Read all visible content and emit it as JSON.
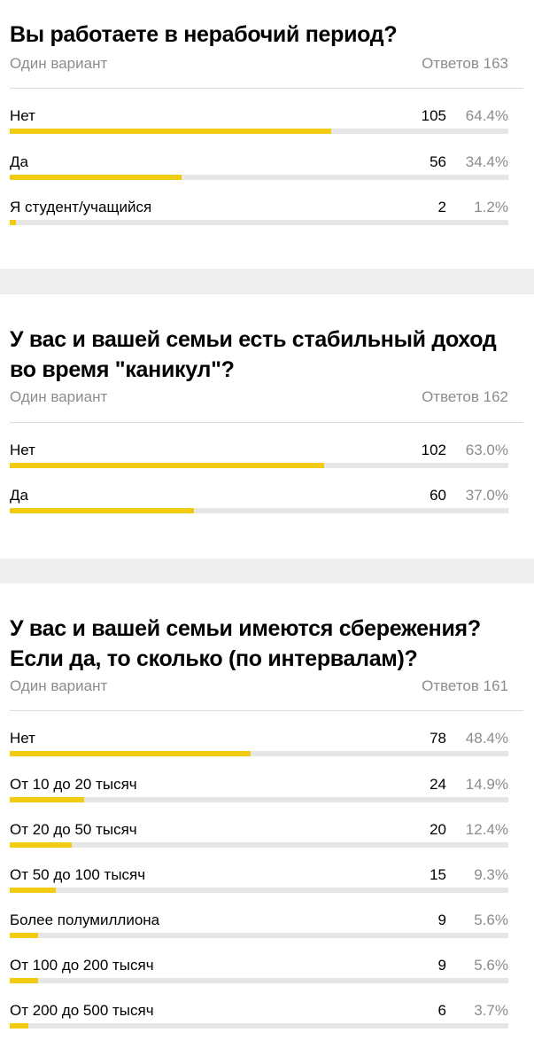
{
  "colors": {
    "bar_fill": "#f2cc13",
    "bar_track": "#e6e6e6",
    "muted_text": "#8c8c8c",
    "separator": "#efefef"
  },
  "questions": [
    {
      "title": "Вы работаете в нерабочий период?",
      "mode": "Один вариант",
      "answers": "Ответов 163",
      "options": [
        {
          "label": "Нет",
          "count": "105",
          "pct": "64.4%",
          "share": 0.644
        },
        {
          "label": "Да",
          "count": "56",
          "pct": "34.4%",
          "share": 0.344
        },
        {
          "label": "Я студент/учащийся",
          "count": "2",
          "pct": "1.2%",
          "share": 0.012
        }
      ]
    },
    {
      "title": "У вас и вашей семьи есть стабильный доход во время \"каникул\"?",
      "mode": "Один вариант",
      "answers": "Ответов 162",
      "options": [
        {
          "label": "Нет",
          "count": "102",
          "pct": "63.0%",
          "share": 0.63
        },
        {
          "label": "Да",
          "count": "60",
          "pct": "37.0%",
          "share": 0.37
        }
      ]
    },
    {
      "title": "У вас и вашей семьи имеются сбережения? Если да, то сколько (по интервалам)?",
      "mode": "Один вариант",
      "answers": "Ответов 161",
      "options": [
        {
          "label": "Нет",
          "count": "78",
          "pct": "48.4%",
          "share": 0.484
        },
        {
          "label": "От 10 до 20 тысяч",
          "count": "24",
          "pct": "14.9%",
          "share": 0.149
        },
        {
          "label": "От 20 до 50 тысяч",
          "count": "20",
          "pct": "12.4%",
          "share": 0.124
        },
        {
          "label": "От 50 до 100 тысяч",
          "count": "15",
          "pct": "9.3%",
          "share": 0.093
        },
        {
          "label": "Более полумиллиона",
          "count": "9",
          "pct": "5.6%",
          "share": 0.056
        },
        {
          "label": "От 100 до 200 тысяч",
          "count": "9",
          "pct": "5.6%",
          "share": 0.056
        },
        {
          "label": "От 200 до 500 тысяч",
          "count": "6",
          "pct": "3.7%",
          "share": 0.037
        }
      ]
    }
  ]
}
